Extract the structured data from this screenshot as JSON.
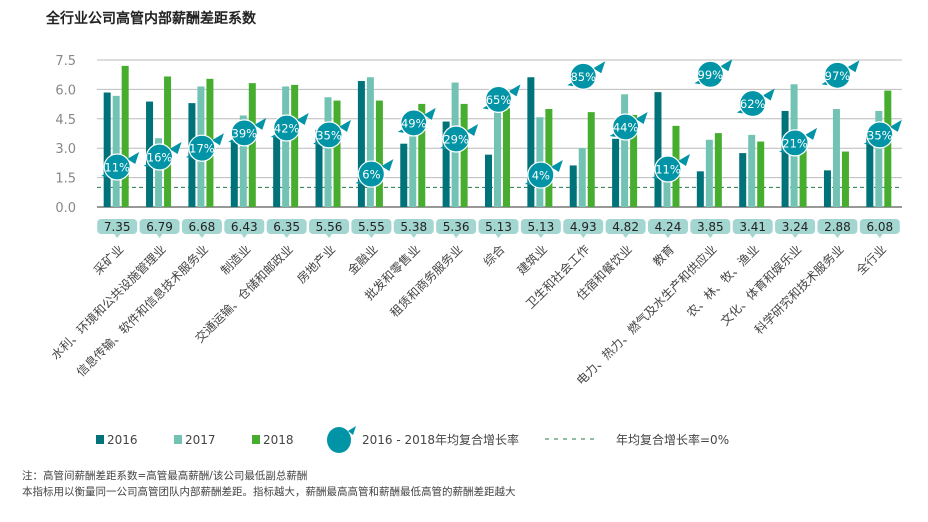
{
  "title": "全行业公司高管内部薪酬差距系数",
  "chart_data": {
    "type": "bar",
    "title": "全行业公司高管内部薪酬差距系数",
    "ylim": [
      0,
      7.5
    ],
    "yticks": [
      "0.0",
      "1.5",
      "3.0",
      "4.5",
      "6.0",
      "7.5"
    ],
    "reference_line": {
      "value": 1.0,
      "label": "年均复合增长率=0%"
    },
    "categories": [
      "采矿业",
      "水利、环境和公共设施管理业",
      "信息传输、软件和信息技术服务业",
      "制造业",
      "交通运输、仓储和邮政业",
      "房地产业",
      "金融业",
      "批发和零售业",
      "租赁和商务服务业",
      "综合",
      "建筑业",
      "卫生和社会工作",
      "住宿和餐饮业",
      "教育",
      "电力、热力、燃气及水生产和供应业",
      "农、林、牧、渔业",
      "文化、体育和娱乐业",
      "科学研究和技术服务业",
      "全行业"
    ],
    "series": [
      {
        "name": "2016",
        "color": "#00737a",
        "values": [
          5.84,
          5.38,
          5.3,
          3.43,
          3.6,
          3.94,
          6.43,
          3.23,
          4.36,
          2.67,
          6.62,
          2.12,
          3.48,
          5.86,
          1.82,
          2.75,
          4.9,
          1.87,
          3.6
        ]
      },
      {
        "name": "2017",
        "color": "#72c3b4",
        "values": [
          5.67,
          3.51,
          6.15,
          4.67,
          6.15,
          5.6,
          6.62,
          3.6,
          6.35,
          4.92,
          4.58,
          3.0,
          5.75,
          1.4,
          3.43,
          3.68,
          6.26,
          5.0,
          4.9
        ]
      },
      {
        "name": "2018",
        "color": "#46ad2f",
        "values": [
          7.2,
          6.66,
          6.54,
          6.32,
          6.23,
          5.43,
          5.43,
          5.26,
          5.26,
          5.04,
          5.0,
          4.84,
          4.7,
          4.14,
          3.77,
          3.34,
          2.9,
          2.83,
          5.94
        ]
      }
    ],
    "coefficient_labels": [
      "7.35",
      "6.79",
      "6.68",
      "6.43",
      "6.35",
      "5.56",
      "5.55",
      "5.38",
      "5.36",
      "5.13",
      "5.13",
      "4.93",
      "4.82",
      "4.24",
      "3.85",
      "3.41",
      "3.24",
      "2.88",
      "6.08"
    ],
    "growth_rates": [
      "11%",
      "16%",
      "17%",
      "39%",
      "42%",
      "35%",
      "6%",
      "49%",
      "29%",
      "65%",
      "4%",
      "85%",
      "44%",
      "11%",
      "99%",
      "62%",
      "21%",
      "97%",
      "35%"
    ],
    "growth_color": "#0094a6",
    "legend": [
      "2016",
      "2017",
      "2018",
      "2016 - 2018年均复合增长率",
      "年均复合增长率=0%"
    ]
  },
  "notes": [
    "注：高管间薪酬差距系数=高管最高薪酬/该公司最低副总薪酬",
    "本指标用以衡量同一公司高管团队内部薪酬差距。指标越大，薪酬最高高管和薪酬最低高管的薪酬差距越大"
  ]
}
